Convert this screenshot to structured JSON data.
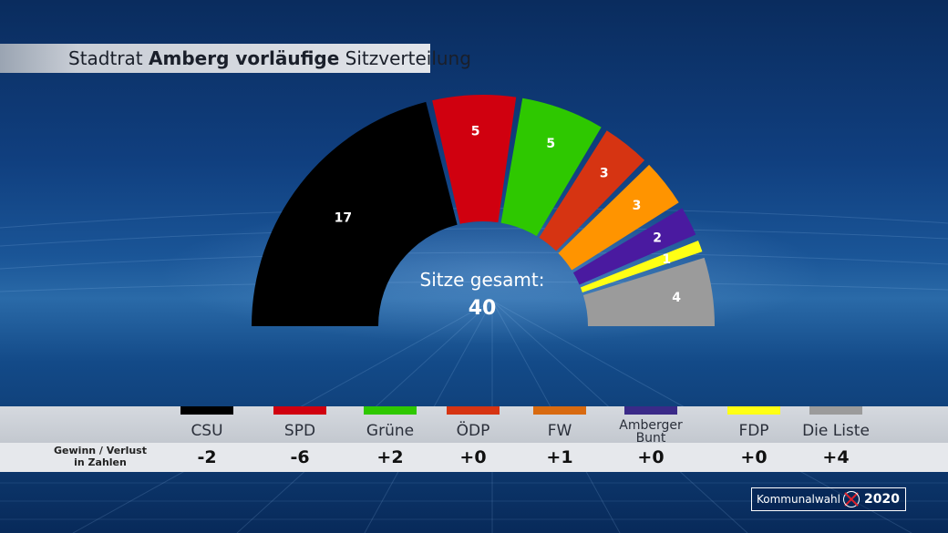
{
  "header": {
    "title_prefix": "Stadtrat",
    "title_bold": "Amberg vorläufige",
    "title_suffix": "Sitzverteilung"
  },
  "chart_data": {
    "type": "pie",
    "subtype": "hemicycle",
    "title": "Stadtrat Amberg vorläufige Sitzverteilung",
    "center_label": "Sitze gesamt:",
    "total": 40,
    "total_label": "40",
    "categories": [
      "CSU",
      "SPD",
      "Grüne",
      "ÖDP",
      "FW",
      "Amberger Bunt",
      "FDP",
      "Die Liste"
    ],
    "values": [
      17,
      5,
      5,
      3,
      3,
      2,
      1,
      4
    ],
    "value_labels": [
      "17",
      "5",
      "5",
      "3",
      "3",
      "2",
      "1",
      "4"
    ],
    "colors": [
      "#000000",
      "#d0000f",
      "#2ec800",
      "#d63412",
      "#ff9400",
      "#4a1aa0",
      "#ffff14",
      "#9b9b9b"
    ],
    "change_label": "Gewinn / Verlust in Zahlen",
    "changes": [
      "-2",
      "-6",
      "+2",
      "+0",
      "+1",
      "+0",
      "+0",
      "+4"
    ]
  },
  "legend": {
    "caption_line1": "Gewinn / Verlust",
    "caption_line2": "in Zahlen",
    "parties": [
      {
        "name": "CSU",
        "color": "#000000",
        "swatch": "#000000",
        "delta": "-2"
      },
      {
        "name": "SPD",
        "color": "#d0000f",
        "swatch": "#d0000f",
        "delta": "-6"
      },
      {
        "name": "Grüne",
        "color": "#2ec800",
        "swatch": "#2ec800",
        "delta": "+2"
      },
      {
        "name": "ÖDP",
        "color": "#d63412",
        "swatch": "#d63412",
        "delta": "+0"
      },
      {
        "name": "FW",
        "color": "#ff9400",
        "swatch": "#d86a10",
        "delta": "+1"
      },
      {
        "name": "Amberger Bunt",
        "color": "#4a1aa0",
        "swatch": "#3a2a88",
        "delta": "+0"
      },
      {
        "name": "FDP",
        "color": "#ffff14",
        "swatch": "#ffff14",
        "delta": "+0"
      },
      {
        "name": "Die Liste",
        "color": "#9b9b9b",
        "swatch": "#9b9b9b",
        "delta": "+4"
      }
    ]
  },
  "logo": {
    "text": "Kommunalwahl",
    "year": "2020"
  }
}
